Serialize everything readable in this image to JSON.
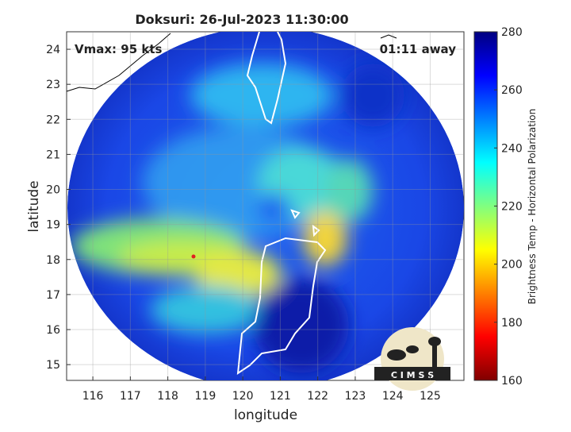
{
  "chart_data": {
    "type": "image",
    "title": "Doksuri: 26-Jul-2023 11:30:00",
    "xlabel": "longitude",
    "ylabel": "latitude",
    "xlim": [
      115.3,
      125.9
    ],
    "xticks": [
      116,
      117,
      118,
      119,
      120,
      121,
      122,
      123,
      124,
      125
    ],
    "ylim": [
      14.55,
      24.5
    ],
    "yticks": [
      15,
      16,
      17,
      18,
      19,
      20,
      21,
      22,
      23,
      24
    ],
    "grid": true,
    "annotations": [
      "Vmax: 95 kts",
      "01:11 away"
    ],
    "colorbar": {
      "label": "Brightness Temp - Horizontal Polarization",
      "clim": [
        160,
        280
      ],
      "ticks": [
        160,
        180,
        200,
        220,
        240,
        260,
        280
      ],
      "colors": [
        "#800000",
        "#ff0000",
        "#ff8000",
        "#ffff00",
        "#80ff80",
        "#00ffff",
        "#0080ff",
        "#0000ff",
        "#000080"
      ]
    },
    "logo": "C I M S S"
  }
}
